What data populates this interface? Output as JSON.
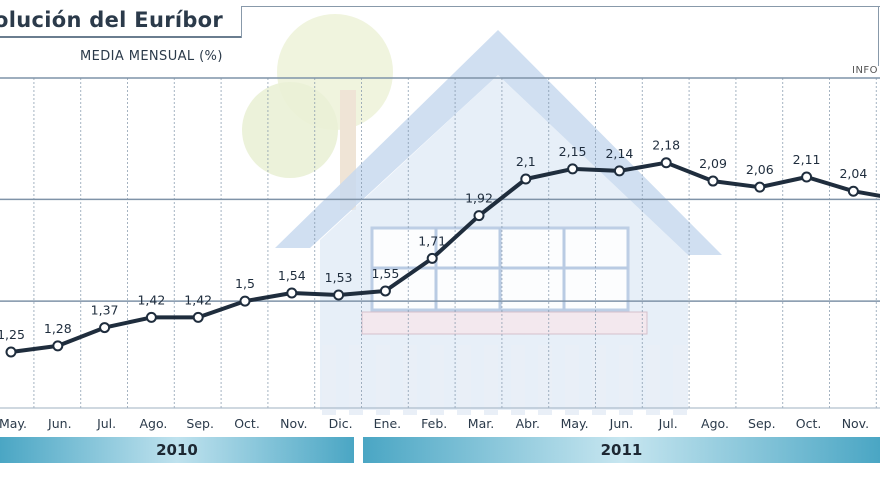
{
  "header": {
    "title": "olución del Euríbor",
    "subtitle": "MEDIA MENSUAL (%)",
    "source_fragment": "INFO"
  },
  "colors": {
    "line": "#1f2d3d",
    "grid": "#7f93a8",
    "year_bar": "#4aa6c4",
    "year_text": "#1d2833",
    "watermark_house": "#c8d9ee"
  },
  "chart_data": {
    "type": "line",
    "title": "olución del Euríbor",
    "subtitle": "MEDIA MENSUAL (%)",
    "xlabel": "",
    "ylabel": "",
    "categories": [
      "May.",
      "Jun.",
      "Jul.",
      "Ago.",
      "Sep.",
      "Oct.",
      "Nov.",
      "Dic.",
      "Ene.",
      "Feb.",
      "Mar.",
      "Abr.",
      "May.",
      "Jun.",
      "Jul.",
      "Ago.",
      "Sep.",
      "Oct.",
      "Nov."
    ],
    "values": [
      1.25,
      1.28,
      1.37,
      1.42,
      1.42,
      1.5,
      1.54,
      1.53,
      1.55,
      1.71,
      1.92,
      2.1,
      2.15,
      2.14,
      2.18,
      2.09,
      2.06,
      2.11,
      2.04
    ],
    "labels": [
      "1,25",
      "1,28",
      "1,37",
      "1,42",
      "1,42",
      "1,5",
      "1,54",
      "1,53",
      "1,55",
      "1,71",
      "1,92",
      "2,1",
      "2,15",
      "2,14",
      "2,18",
      "2,09",
      "2,06",
      "2,11",
      "2,04"
    ],
    "extra_value_beyond_edge": 2.0,
    "ylim": [
      1.0,
      2.6
    ],
    "grid": true,
    "legend": "none",
    "years": [
      {
        "label": "2010",
        "months": [
          "May.",
          "Jun.",
          "Jul.",
          "Ago.",
          "Sep.",
          "Oct.",
          "Nov.",
          "Dic."
        ]
      },
      {
        "label": "2011",
        "months": [
          "Ene.",
          "Feb.",
          "Mar.",
          "Abr.",
          "May.",
          "Jun.",
          "Jul.",
          "Ago.",
          "Sep.",
          "Oct.",
          "Nov."
        ]
      }
    ]
  }
}
